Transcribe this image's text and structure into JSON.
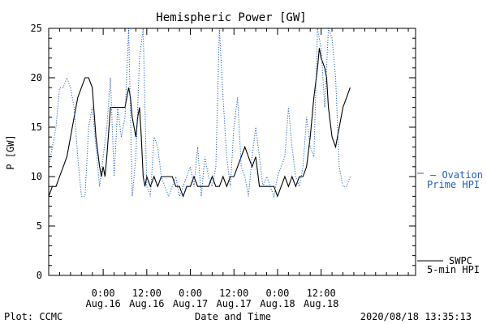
{
  "chart_data": {
    "type": "line",
    "title": "Hemispheric Power [GW]",
    "ylabel": "P [GW]",
    "xlabel": "Date and Time",
    "ylim": [
      0,
      25
    ],
    "xlim": [
      -15.0,
      86.0
    ],
    "x_unit": "hours after 2020-08-16 00:00",
    "yticks": [
      0,
      5,
      10,
      15,
      20,
      25
    ],
    "xticks": [
      {
        "x": 0,
        "time": "0:00",
        "date": "Aug.16"
      },
      {
        "x": 12,
        "time": "12:00",
        "date": "Aug.16"
      },
      {
        "x": 24,
        "time": "0:00",
        "date": "Aug.17"
      },
      {
        "x": 36,
        "time": "12:00",
        "date": "Aug.17"
      },
      {
        "x": 48,
        "time": "0:00",
        "date": "Aug.18"
      },
      {
        "x": 60,
        "time": "12:00",
        "date": "Aug.18"
      }
    ],
    "series": [
      {
        "name": "SWPC 5-min HPI",
        "style": "solid",
        "color": "#000000",
        "points": [
          [
            -15,
            8
          ],
          [
            -14,
            9
          ],
          [
            -13,
            9
          ],
          [
            -12,
            10
          ],
          [
            -11,
            11
          ],
          [
            -10,
            12
          ],
          [
            -9,
            14
          ],
          [
            -8,
            16
          ],
          [
            -7,
            18
          ],
          [
            -6,
            19
          ],
          [
            -5,
            20
          ],
          [
            -4,
            20
          ],
          [
            -3,
            19
          ],
          [
            -2,
            14
          ],
          [
            -1,
            11
          ],
          [
            -0.5,
            10
          ],
          [
            0,
            11
          ],
          [
            0.5,
            10
          ],
          [
            1,
            12
          ],
          [
            2,
            17
          ],
          [
            3,
            17
          ],
          [
            4,
            17
          ],
          [
            5,
            17
          ],
          [
            6,
            17
          ],
          [
            7,
            19
          ],
          [
            7.5,
            18
          ],
          [
            8,
            16
          ],
          [
            8.5,
            15
          ],
          [
            9,
            14
          ],
          [
            9.5,
            16
          ],
          [
            10,
            17
          ],
          [
            10.5,
            14
          ],
          [
            11,
            10
          ],
          [
            11.5,
            9
          ],
          [
            12,
            10
          ],
          [
            13,
            9
          ],
          [
            14,
            10
          ],
          [
            15,
            9
          ],
          [
            16,
            10
          ],
          [
            17,
            10
          ],
          [
            18,
            10
          ],
          [
            19,
            10
          ],
          [
            20,
            9
          ],
          [
            21,
            9
          ],
          [
            22,
            8
          ],
          [
            23,
            9
          ],
          [
            24,
            9
          ],
          [
            25,
            10
          ],
          [
            26,
            9
          ],
          [
            27,
            9
          ],
          [
            28,
            9
          ],
          [
            29,
            9
          ],
          [
            30,
            10
          ],
          [
            31,
            9
          ],
          [
            32,
            9
          ],
          [
            33,
            10
          ],
          [
            34,
            9
          ],
          [
            35,
            10
          ],
          [
            36,
            10
          ],
          [
            37,
            11
          ],
          [
            38,
            12
          ],
          [
            39,
            13
          ],
          [
            40,
            12
          ],
          [
            41,
            11
          ],
          [
            42,
            12
          ],
          [
            43,
            9
          ],
          [
            44,
            9
          ],
          [
            45,
            9
          ],
          [
            46,
            9
          ],
          [
            47,
            9
          ],
          [
            48,
            8
          ],
          [
            49,
            9
          ],
          [
            50,
            10
          ],
          [
            51,
            9
          ],
          [
            52,
            10
          ],
          [
            53,
            9
          ],
          [
            54,
            10
          ],
          [
            55,
            10
          ],
          [
            56,
            11
          ],
          [
            57,
            14
          ],
          [
            58,
            18
          ],
          [
            59,
            21
          ],
          [
            59.5,
            23
          ],
          [
            60,
            22
          ],
          [
            61,
            21
          ],
          [
            61.5,
            20
          ],
          [
            62,
            17
          ],
          [
            63,
            14
          ],
          [
            64,
            13
          ],
          [
            65,
            15
          ],
          [
            66,
            17
          ],
          [
            67,
            18
          ],
          [
            68,
            19
          ]
        ]
      },
      {
        "name": "Ovation Prime HPI",
        "style": "dotted",
        "color": "#1f5fbf",
        "points": [
          [
            -15,
            11
          ],
          [
            -14,
            13
          ],
          [
            -13,
            15
          ],
          [
            -12,
            19
          ],
          [
            -11,
            19
          ],
          [
            -10,
            20
          ],
          [
            -9,
            19
          ],
          [
            -8,
            17
          ],
          [
            -7,
            12
          ],
          [
            -6,
            8
          ],
          [
            -5,
            8
          ],
          [
            -4,
            15
          ],
          [
            -3,
            17
          ],
          [
            -2,
            13
          ],
          [
            -1,
            9
          ],
          [
            0,
            12
          ],
          [
            1,
            15
          ],
          [
            2,
            20
          ],
          [
            3,
            10
          ],
          [
            4,
            17
          ],
          [
            5,
            14
          ],
          [
            6,
            16
          ],
          [
            7,
            25
          ],
          [
            8,
            8
          ],
          [
            9,
            12
          ],
          [
            10,
            22
          ],
          [
            11,
            25
          ],
          [
            12,
            9
          ],
          [
            13,
            8
          ],
          [
            14,
            14
          ],
          [
            15,
            13
          ],
          [
            16,
            10
          ],
          [
            17,
            9
          ],
          [
            18,
            8
          ],
          [
            19,
            9
          ],
          [
            20,
            10
          ],
          [
            21,
            8
          ],
          [
            22,
            9
          ],
          [
            23,
            10
          ],
          [
            24,
            11
          ],
          [
            25,
            9
          ],
          [
            26,
            13
          ],
          [
            27,
            8
          ],
          [
            28,
            12
          ],
          [
            29,
            10
          ],
          [
            30,
            9
          ],
          [
            31,
            11
          ],
          [
            32,
            25
          ],
          [
            33,
            18
          ],
          [
            34,
            12
          ],
          [
            35,
            9
          ],
          [
            36,
            15
          ],
          [
            37,
            18
          ],
          [
            38,
            11
          ],
          [
            39,
            10
          ],
          [
            40,
            8
          ],
          [
            41,
            12
          ],
          [
            42,
            15
          ],
          [
            43,
            12
          ],
          [
            44,
            9
          ],
          [
            45,
            10
          ],
          [
            46,
            9
          ],
          [
            47,
            8
          ],
          [
            48,
            10
          ],
          [
            49,
            11
          ],
          [
            50,
            12
          ],
          [
            51,
            17
          ],
          [
            52,
            13
          ],
          [
            53,
            10
          ],
          [
            54,
            9
          ],
          [
            55,
            11
          ],
          [
            56,
            16
          ],
          [
            57,
            13
          ],
          [
            58,
            12
          ],
          [
            59,
            25
          ],
          [
            60,
            23
          ],
          [
            61,
            17
          ],
          [
            62,
            25
          ],
          [
            63,
            24
          ],
          [
            64,
            20
          ],
          [
            65,
            11
          ],
          [
            66,
            9
          ],
          [
            67,
            9
          ],
          [
            68,
            10
          ]
        ]
      }
    ],
    "legend": [
      {
        "line1": "— Ovation",
        "line2": "Prime HPI",
        "color": "#1f5fbf"
      },
      {
        "line1": "SWPC",
        "line2": "5-min HPI",
        "color": "#000000"
      }
    ]
  },
  "footer": {
    "plot_credit": "Plot: CCMC",
    "xlabel": "Date and Time",
    "timestamp": "2020/08/18 13:35:13"
  }
}
